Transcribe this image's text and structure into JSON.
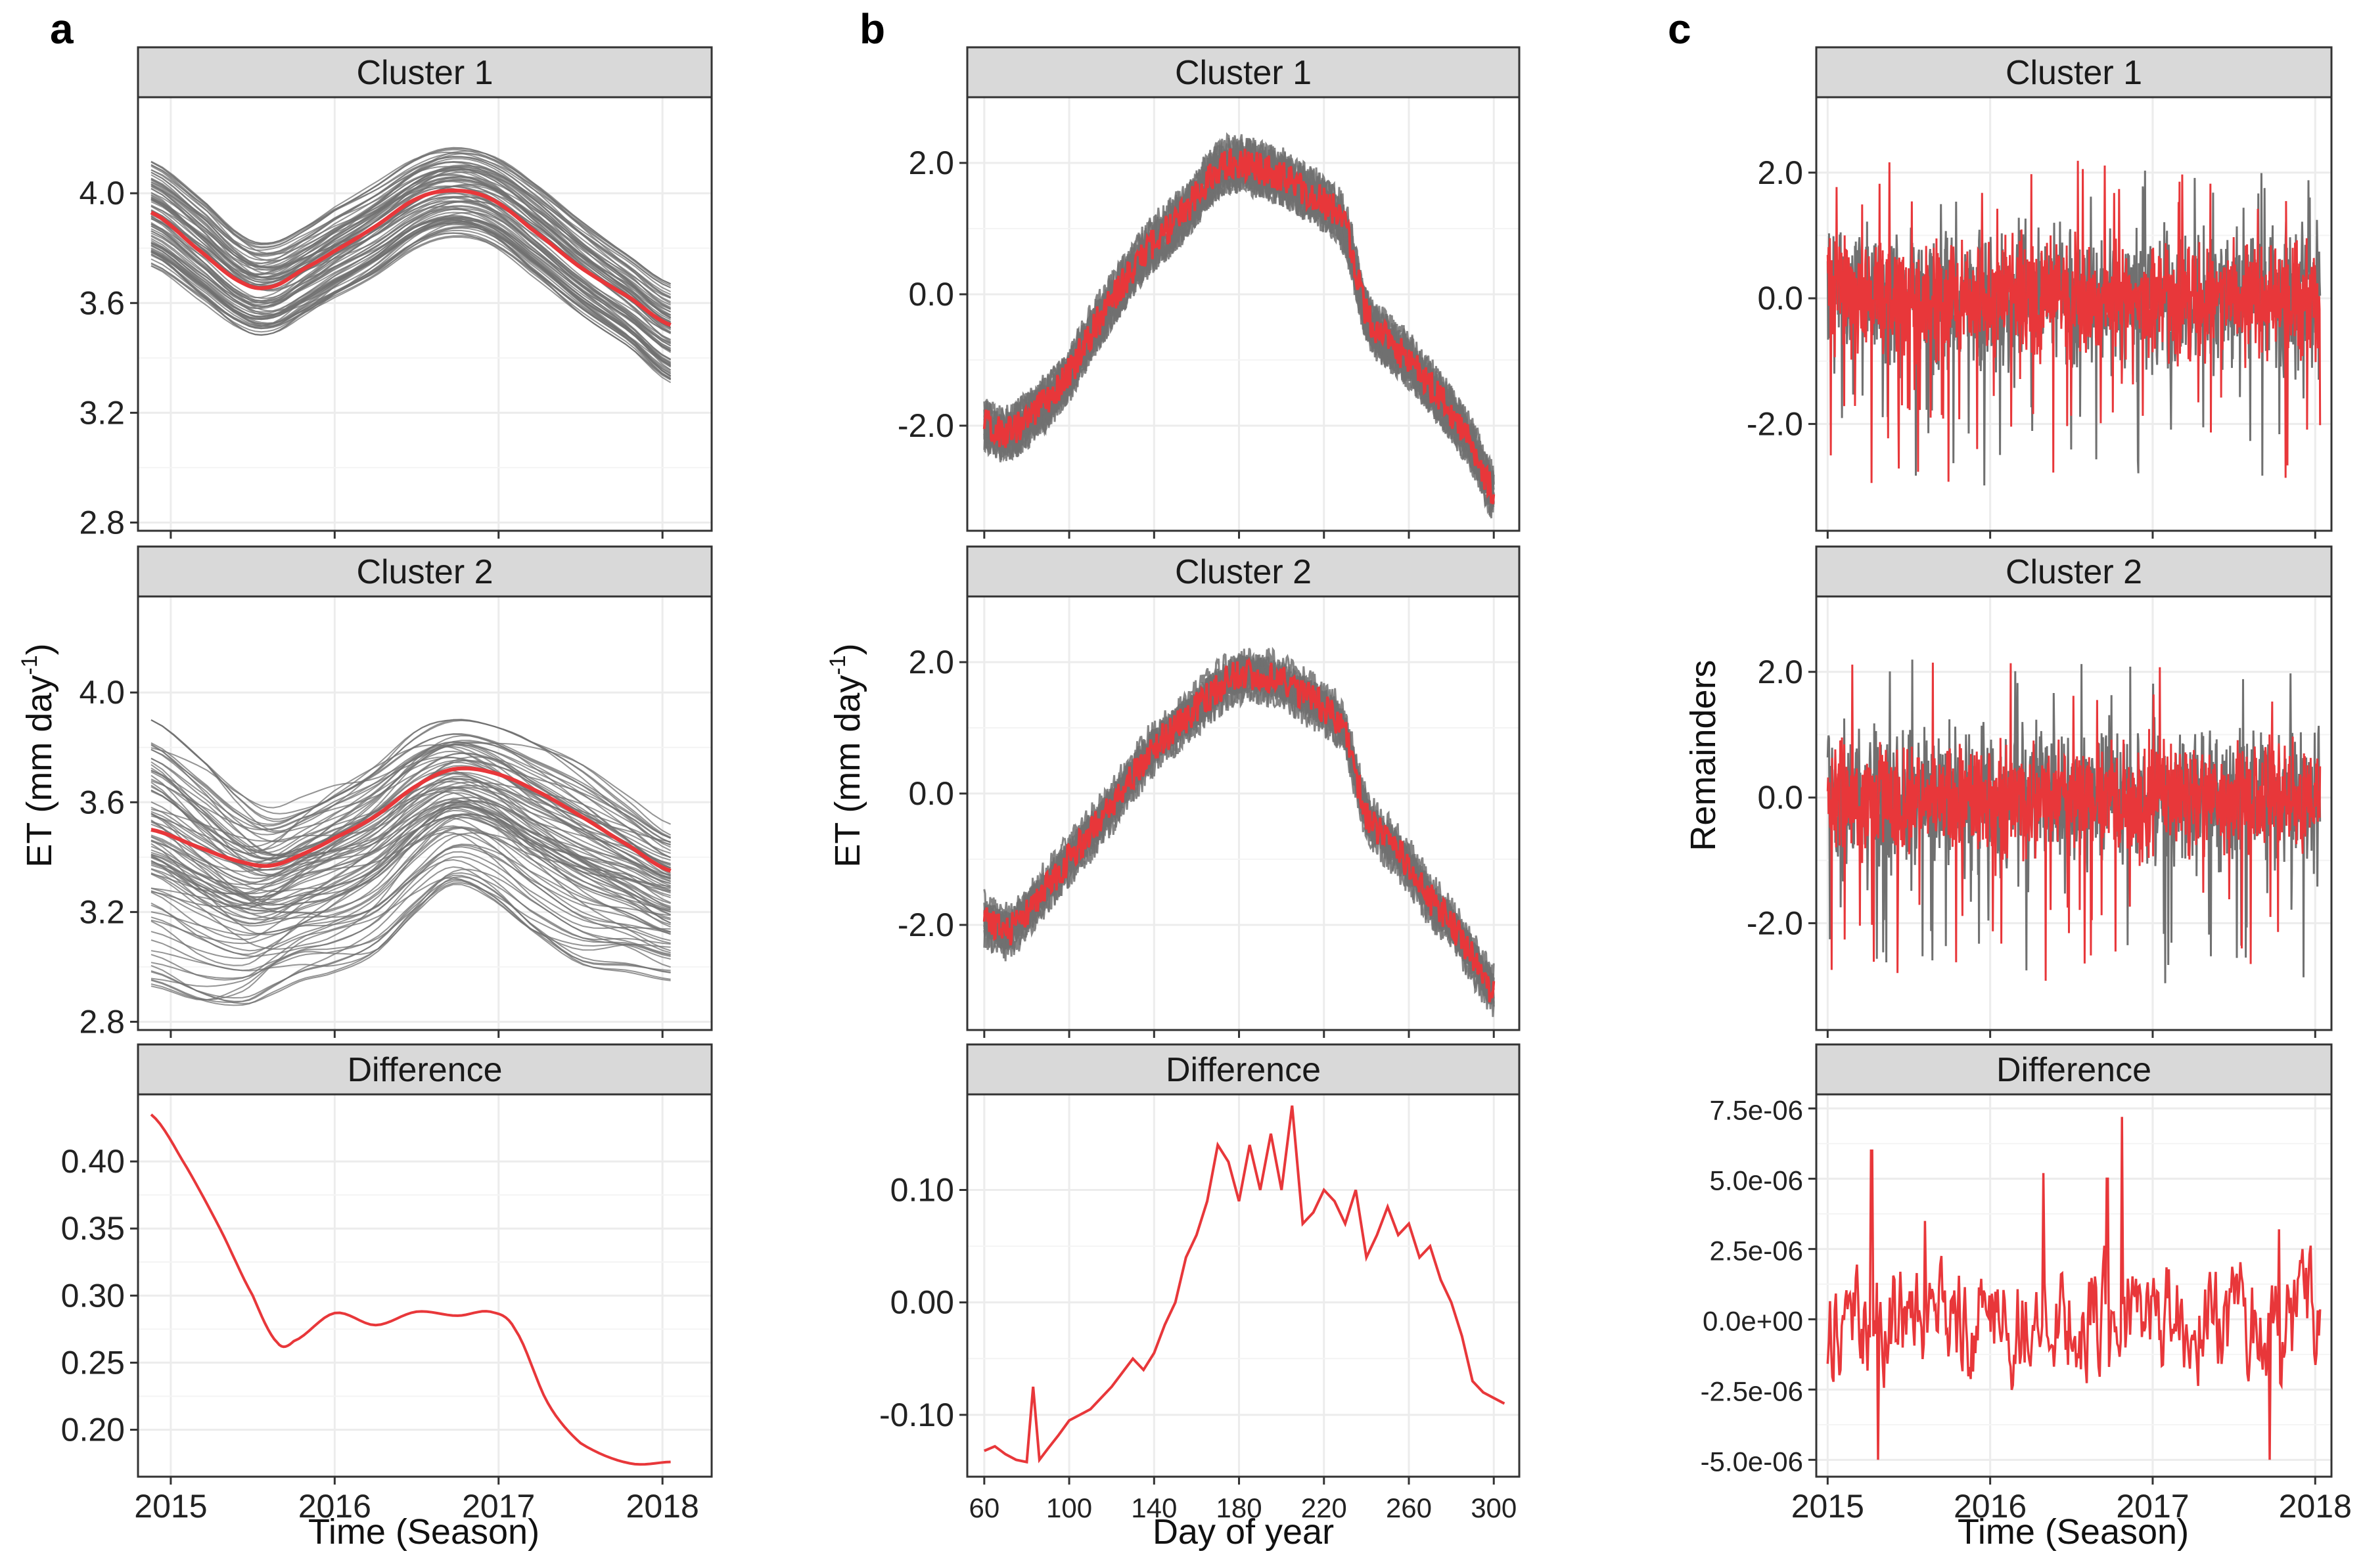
{
  "figure": {
    "colors": {
      "mean_line": "#e8373a",
      "member_lines": "#707070",
      "grid": "#ececec",
      "strip_fill": "#d9d9d9",
      "frame": "#333333"
    },
    "columns": [
      {
        "letter": "a",
        "xlabel": "Time (Season)",
        "ylabel": "ET (mm day",
        "ylabel_sup": "-1",
        "ylabel_close": ")",
        "xticks": [
          "2015",
          "2016",
          "2017",
          "2018"
        ]
      },
      {
        "letter": "b",
        "xlabel": "Day of year",
        "ylabel": "ET (mm day",
        "ylabel_sup": "-1",
        "ylabel_close": ")",
        "xticks": [
          "60",
          "100",
          "140",
          "180",
          "220",
          "260",
          "300"
        ]
      },
      {
        "letter": "c",
        "xlabel": "Time (Season)",
        "ylabel": "Remainders",
        "xticks": [
          "2015",
          "2016",
          "2017",
          "2018"
        ]
      }
    ]
  },
  "chart_data": [
    {
      "type": "line",
      "panel": "a-cluster-1",
      "title": "Cluster 1",
      "x_range": [
        2014.8,
        2018.3
      ],
      "ylim": [
        2.77,
        4.35
      ],
      "yticks": [
        "2.8",
        "3.2",
        "3.6",
        "4.0"
      ],
      "yticks_values": [
        2.8,
        3.2,
        3.6,
        4.0
      ],
      "series": [
        {
          "role": "mean",
          "x": [
            2014.88,
            2015.2,
            2015.45,
            2015.62,
            2015.8,
            2016.0,
            2016.25,
            2016.5,
            2016.72,
            2016.95,
            2017.2,
            2017.5,
            2017.8,
            2018.05
          ],
          "y": [
            3.93,
            3.78,
            3.67,
            3.66,
            3.72,
            3.79,
            3.88,
            3.98,
            4.01,
            3.98,
            3.87,
            3.73,
            3.62,
            3.52
          ]
        }
      ],
      "band": {
        "upper": [
          4.13,
          3.98,
          3.84,
          3.82,
          3.87,
          3.95,
          4.04,
          4.14,
          4.18,
          4.15,
          4.05,
          3.9,
          3.77,
          3.67
        ],
        "lower": [
          3.73,
          3.6,
          3.5,
          3.49,
          3.55,
          3.62,
          3.7,
          3.8,
          3.84,
          3.81,
          3.7,
          3.56,
          3.44,
          3.31
        ]
      }
    },
    {
      "type": "line",
      "panel": "a-cluster-2",
      "title": "Cluster 2",
      "x_range": [
        2014.8,
        2018.3
      ],
      "ylim": [
        2.77,
        4.35
      ],
      "yticks": [
        "2.8",
        "3.2",
        "3.6",
        "4.0"
      ],
      "yticks_values": [
        2.8,
        3.2,
        3.6,
        4.0
      ],
      "series": [
        {
          "role": "mean",
          "x": [
            2014.88,
            2015.2,
            2015.45,
            2015.62,
            2015.8,
            2016.0,
            2016.25,
            2016.5,
            2016.72,
            2016.95,
            2017.2,
            2017.5,
            2017.8,
            2018.05
          ],
          "y": [
            3.5,
            3.43,
            3.38,
            3.37,
            3.41,
            3.47,
            3.55,
            3.66,
            3.72,
            3.71,
            3.65,
            3.55,
            3.44,
            3.35
          ]
        }
      ],
      "band": {
        "upper": [
          3.9,
          3.75,
          3.62,
          3.58,
          3.62,
          3.68,
          3.76,
          3.86,
          3.9,
          3.88,
          3.82,
          3.74,
          3.62,
          3.52
        ],
        "lower": [
          2.93,
          2.86,
          2.85,
          2.9,
          2.95,
          2.98,
          3.05,
          3.2,
          3.3,
          3.25,
          3.12,
          3.0,
          2.98,
          2.95
        ]
      }
    },
    {
      "type": "line",
      "panel": "a-difference",
      "title": "Difference",
      "x_range": [
        2014.8,
        2018.3
      ],
      "ylim": [
        0.165,
        0.45
      ],
      "yticks": [
        "0.20",
        "0.25",
        "0.30",
        "0.35",
        "0.40"
      ],
      "yticks_values": [
        0.2,
        0.25,
        0.3,
        0.35,
        0.4
      ],
      "series": [
        {
          "role": "difference",
          "x": [
            2014.88,
            2015.1,
            2015.3,
            2015.5,
            2015.65,
            2015.75,
            2016.0,
            2016.25,
            2016.5,
            2016.75,
            2016.95,
            2017.1,
            2017.3,
            2017.5,
            2017.8,
            2018.05
          ],
          "y": [
            0.435,
            0.395,
            0.35,
            0.3,
            0.265,
            0.266,
            0.287,
            0.278,
            0.288,
            0.285,
            0.288,
            0.275,
            0.22,
            0.19,
            0.175,
            0.176
          ]
        }
      ]
    },
    {
      "type": "line",
      "panel": "b-cluster-1",
      "title": "Cluster 1",
      "x_range": [
        52,
        312
      ],
      "ylim": [
        -3.6,
        3.0
      ],
      "yticks": [
        "-2.0",
        "0.0",
        "2.0"
      ],
      "yticks_values": [
        -2.0,
        0.0,
        2.0
      ],
      "series": [
        {
          "role": "mean",
          "x": [
            60,
            70,
            80,
            90,
            100,
            110,
            120,
            130,
            140,
            150,
            160,
            170,
            180,
            190,
            200,
            210,
            220,
            230,
            240,
            250,
            260,
            270,
            280,
            290,
            300
          ],
          "y": [
            -2.0,
            -2.1,
            -1.9,
            -1.6,
            -1.2,
            -0.6,
            -0.1,
            0.4,
            0.8,
            1.1,
            1.5,
            1.9,
            2.0,
            1.9,
            1.8,
            1.6,
            1.4,
            1.0,
            -0.3,
            -0.7,
            -1.0,
            -1.4,
            -1.8,
            -2.3,
            -3.0
          ]
        }
      ]
    },
    {
      "type": "line",
      "panel": "b-cluster-2",
      "title": "Cluster 2",
      "x_range": [
        52,
        312
      ],
      "ylim": [
        -3.6,
        3.0
      ],
      "yticks": [
        "-2.0",
        "0.0",
        "2.0"
      ],
      "yticks_values": [
        -2.0,
        0.0,
        2.0
      ],
      "series": [
        {
          "role": "mean",
          "x": [
            60,
            70,
            80,
            90,
            100,
            110,
            120,
            130,
            140,
            150,
            160,
            170,
            180,
            190,
            200,
            210,
            220,
            230,
            240,
            250,
            260,
            270,
            280,
            290,
            300
          ],
          "y": [
            -1.9,
            -2.1,
            -1.8,
            -1.4,
            -1.0,
            -0.6,
            -0.2,
            0.3,
            0.7,
            1.0,
            1.3,
            1.6,
            1.8,
            1.8,
            1.7,
            1.5,
            1.3,
            0.9,
            -0.3,
            -0.7,
            -1.1,
            -1.6,
            -2.0,
            -2.5,
            -3.0
          ]
        }
      ]
    },
    {
      "type": "line",
      "panel": "b-difference",
      "title": "Difference",
      "x_range": [
        52,
        312
      ],
      "ylim": [
        -0.155,
        0.185
      ],
      "yticks": [
        "-0.10",
        "0.00",
        "0.10"
      ],
      "yticks_values": [
        -0.1,
        0.0,
        0.1
      ],
      "series": [
        {
          "role": "difference",
          "x": [
            60,
            65,
            70,
            75,
            80,
            83,
            86,
            90,
            95,
            100,
            110,
            120,
            130,
            135,
            140,
            145,
            150,
            155,
            160,
            165,
            170,
            175,
            180,
            185,
            190,
            195,
            200,
            205,
            210,
            215,
            220,
            225,
            230,
            235,
            240,
            245,
            250,
            255,
            260,
            265,
            270,
            275,
            280,
            285,
            290,
            295,
            300,
            305
          ],
          "y": [
            -0.132,
            -0.128,
            -0.135,
            -0.14,
            -0.142,
            -0.075,
            -0.14,
            -0.13,
            -0.118,
            -0.105,
            -0.095,
            -0.075,
            -0.05,
            -0.06,
            -0.045,
            -0.02,
            0.0,
            0.04,
            0.06,
            0.09,
            0.14,
            0.125,
            0.09,
            0.14,
            0.1,
            0.15,
            0.1,
            0.175,
            0.07,
            0.08,
            0.1,
            0.09,
            0.07,
            0.1,
            0.04,
            0.06,
            0.085,
            0.06,
            0.07,
            0.04,
            0.05,
            0.02,
            0.0,
            -0.03,
            -0.07,
            -0.08,
            -0.085,
            -0.09
          ]
        }
      ]
    },
    {
      "type": "line",
      "panel": "c-cluster-1",
      "title": "Cluster 1",
      "x_range": [
        2014.93,
        2018.1
      ],
      "ylim": [
        -3.7,
        3.2
      ],
      "yticks": [
        "-2.0",
        "0.0",
        "2.0"
      ],
      "yticks_values": [
        -2.0,
        0.0,
        2.0
      ],
      "series": [
        {
          "role": "mean-noise",
          "amplitude": 1.0,
          "x_start": 2015.0,
          "x_end": 2018.03
        }
      ]
    },
    {
      "type": "line",
      "panel": "c-cluster-2",
      "title": "Cluster 2",
      "x_range": [
        2014.93,
        2018.1
      ],
      "ylim": [
        -3.7,
        3.2
      ],
      "yticks": [
        "-2.0",
        "0.0",
        "2.0"
      ],
      "yticks_values": [
        -2.0,
        0.0,
        2.0
      ],
      "series": [
        {
          "role": "mean-noise",
          "amplitude": 1.0,
          "x_start": 2015.0,
          "x_end": 2018.03
        }
      ]
    },
    {
      "type": "line",
      "panel": "c-difference",
      "title": "Difference",
      "x_range": [
        2014.93,
        2018.1
      ],
      "ylim": [
        -5.6e-06,
        8e-06
      ],
      "yticks": [
        "-5.0e-06",
        "-2.5e-06",
        "0.0e+00",
        "2.5e-06",
        "5.0e-06",
        "7.5e-06"
      ],
      "yticks_values": [
        -5e-06,
        -2.5e-06,
        0.0,
        2.5e-06,
        5e-06,
        7.5e-06
      ],
      "series": [
        {
          "role": "difference-noise",
          "spikes_x": [
            2015.27,
            2015.31,
            2015.6,
            2016.33,
            2016.72,
            2016.81,
            2017.72,
            2017.78,
            2017.92
          ],
          "spikes_y": [
            6e-06,
            -5e-06,
            3.5e-06,
            5.2e-06,
            5e-06,
            7.2e-06,
            -5e-06,
            3.2e-06,
            2.5e-06
          ],
          "x_start": 2015.0,
          "x_end": 2018.03
        }
      ]
    }
  ]
}
